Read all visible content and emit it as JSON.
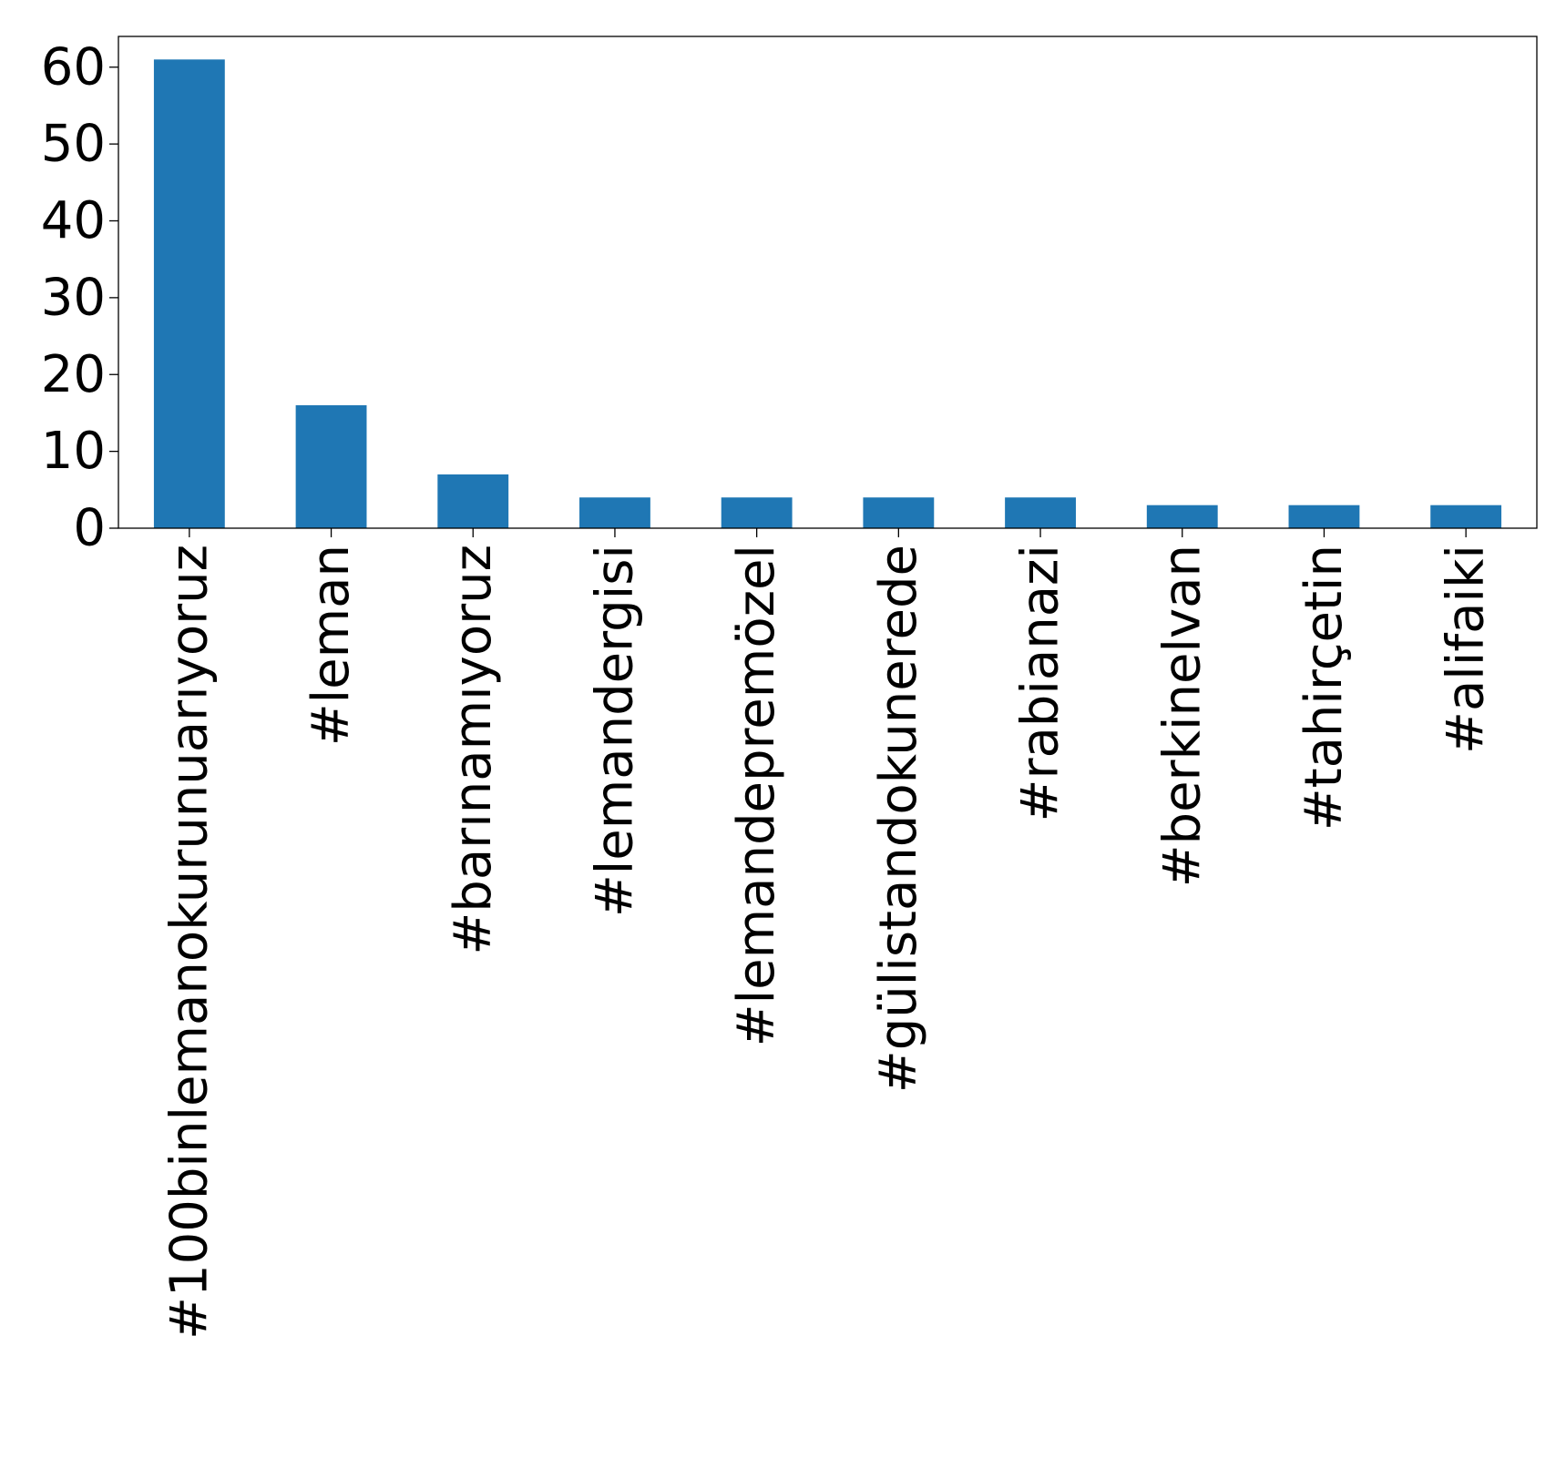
{
  "chart_data": {
    "type": "bar",
    "title": "",
    "xlabel": "",
    "ylabel": "",
    "categories": [
      "#100binlemanokurunuarıyoruz",
      "#leman",
      "#barınamıyoruz",
      "#lemandergisi",
      "#lemandepremözel",
      "#gülistandokunerede",
      "#rabianazi",
      "#berkinelvan",
      "#tahirçetin",
      "#alifaiki"
    ],
    "values": [
      61,
      16,
      7,
      4,
      4,
      4,
      4,
      3,
      3,
      3
    ],
    "ylim": [
      0,
      64
    ],
    "yticks": [
      0,
      10,
      20,
      30,
      40,
      50,
      60
    ],
    "ytick_labels": [
      "0",
      "10",
      "20",
      "30",
      "40",
      "50",
      "60"
    ],
    "grid": false,
    "legend": "none",
    "bar_color": "#1f77b4"
  }
}
